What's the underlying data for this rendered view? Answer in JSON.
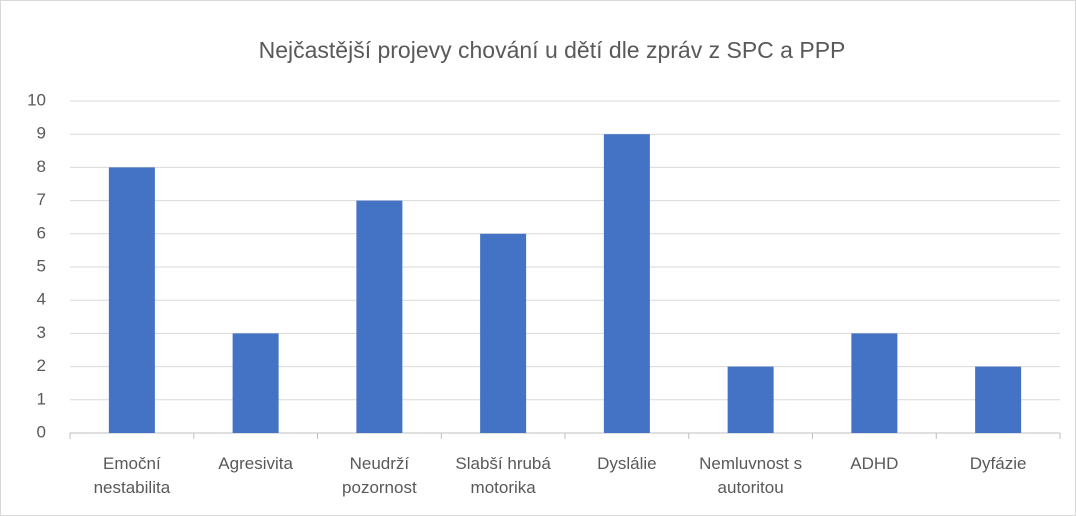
{
  "chart_data": {
    "type": "bar",
    "title": "Nejčastější projevy chování u dětí dle zpráv z SPC a PPP",
    "categories": [
      "Emoční nestabilita",
      "Agresivita",
      "Neudrží pozornost",
      "Slabší hrubá motorika",
      "Dyslálie",
      "Nemluvnost s autoritou",
      "ADHD",
      "Dyfázie"
    ],
    "values": [
      8,
      3,
      7,
      6,
      9,
      2,
      3,
      2
    ],
    "color": "#4472c4",
    "ylim": [
      0,
      10
    ],
    "yticks": [
      0,
      1,
      2,
      3,
      4,
      5,
      6,
      7,
      8,
      9,
      10
    ],
    "grid": true
  }
}
